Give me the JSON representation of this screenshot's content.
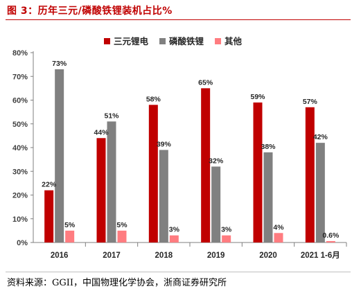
{
  "figure": {
    "title": "图 3：历年三元/磷酸铁锂装机占比%",
    "source": "资料来源：GGII，中国物理化学协会，浙商证券研究所",
    "title_color": "#c00000"
  },
  "chart_data": {
    "type": "bar",
    "title": "",
    "xlabel": "",
    "ylabel": "",
    "categories": [
      "2016",
      "2017",
      "2018",
      "2019",
      "2020",
      "2021 1-6月"
    ],
    "series": [
      {
        "name": "三元锂电",
        "color": "#c00000",
        "values": [
          22,
          44,
          58,
          65,
          59,
          57
        ],
        "labels": [
          "22%",
          "44%",
          "58%",
          "65%",
          "59%",
          "57%"
        ]
      },
      {
        "name": "磷酸铁锂",
        "color": "#808080",
        "values": [
          73,
          51,
          39,
          32,
          38,
          42
        ],
        "labels": [
          "73%",
          "51%",
          "39%",
          "32%",
          "38%",
          "42%"
        ]
      },
      {
        "name": "其他",
        "color": "#ff7c80",
        "values": [
          5,
          5,
          3,
          3,
          4,
          0.6
        ],
        "labels": [
          "5%",
          "5%",
          "3%",
          "3%",
          "4%",
          "0.6%"
        ]
      }
    ],
    "ylim": [
      0,
      80
    ],
    "yticks": [
      0,
      10,
      20,
      30,
      40,
      50,
      60,
      70,
      80
    ],
    "ytick_labels": [
      "0%",
      "10%",
      "20%",
      "30%",
      "40%",
      "50%",
      "60%",
      "70%",
      "80%"
    ],
    "grid": false,
    "legend_position": "top-center"
  }
}
